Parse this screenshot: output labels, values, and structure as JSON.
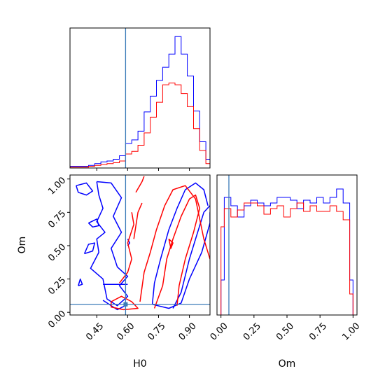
{
  "chart_data": {
    "type": "corner",
    "parameters": [
      "H0",
      "Om"
    ],
    "truth": {
      "H0": 0.59,
      "Om": 0.06
    },
    "series_colors": {
      "blue": "#0000ff",
      "red": "#ff0000",
      "truth": "#3b7bb8"
    },
    "panels": [
      {
        "id": "H0-marginal",
        "type": "histogram-step",
        "xlim": [
          0.32,
          1.0
        ],
        "x_ticks": [
          0.45,
          0.6,
          0.75,
          0.9
        ],
        "bins": [
          0.32,
          0.35,
          0.38,
          0.41,
          0.44,
          0.47,
          0.5,
          0.53,
          0.56,
          0.59,
          0.62,
          0.65,
          0.68,
          0.71,
          0.74,
          0.77,
          0.8,
          0.83,
          0.86,
          0.89,
          0.92,
          0.95,
          0.98
        ],
        "series": [
          {
            "color": "blue",
            "counts": [
              2,
              2,
              2,
              3,
              5,
              7,
              8,
              10,
              14,
              28,
              32,
              42,
              64,
              82,
              100,
              115,
              130,
              150,
              130,
              105,
              65,
              30,
              10
            ]
          },
          {
            "color": "red",
            "counts": [
              1,
              1,
              1,
              2,
              3,
              4,
              5,
              6,
              8,
              16,
              19,
              26,
              40,
              58,
              75,
              95,
              97,
              95,
              85,
              70,
              45,
              20,
              5
            ]
          }
        ]
      },
      {
        "id": "Om-vs-H0",
        "type": "contour",
        "xlabel": "H0",
        "ylabel": "Om",
        "xlim": [
          0.32,
          1.0
        ],
        "ylim": [
          -0.02,
          1.03
        ],
        "x_ticks": [
          0.45,
          0.6,
          0.75,
          0.9
        ],
        "x_tick_labels": [
          "0.45",
          "0.60",
          "0.75",
          "0.90"
        ],
        "y_ticks": [
          0.0,
          0.25,
          0.5,
          0.75,
          1.0
        ],
        "y_tick_labels": [
          "0.00",
          "0.25",
          "0.50",
          "0.75",
          "1.00"
        ],
        "contours": [
          {
            "color": "blue",
            "points": [
              [
                0.35,
                0.95
              ],
              [
                0.4,
                0.97
              ],
              [
                0.43,
                0.91
              ],
              [
                0.4,
                0.88
              ],
              [
                0.36,
                0.9
              ],
              [
                0.35,
                0.95
              ]
            ]
          },
          {
            "color": "blue",
            "points": [
              [
                0.45,
                0.98
              ],
              [
                0.52,
                0.97
              ],
              [
                0.57,
                0.86
              ],
              [
                0.53,
                0.72
              ],
              [
                0.57,
                0.6
              ],
              [
                0.52,
                0.48
              ],
              [
                0.55,
                0.34
              ],
              [
                0.6,
                0.27
              ],
              [
                0.56,
                0.2
              ],
              [
                0.6,
                0.12
              ],
              [
                0.55,
                0.05
              ],
              [
                0.5,
                0.1
              ],
              [
                0.48,
                0.25
              ],
              [
                0.42,
                0.33
              ],
              [
                0.46,
                0.45
              ],
              [
                0.45,
                0.55
              ],
              [
                0.49,
                0.6
              ],
              [
                0.45,
                0.68
              ],
              [
                0.48,
                0.78
              ],
              [
                0.46,
                0.88
              ],
              [
                0.45,
                0.98
              ]
            ]
          },
          {
            "color": "blue",
            "points": [
              [
                0.41,
                0.67
              ],
              [
                0.45,
                0.7
              ],
              [
                0.46,
                0.65
              ],
              [
                0.43,
                0.64
              ],
              [
                0.41,
                0.67
              ]
            ]
          },
          {
            "color": "blue",
            "points": [
              [
                0.39,
                0.44
              ],
              [
                0.43,
                0.46
              ],
              [
                0.44,
                0.52
              ],
              [
                0.41,
                0.51
              ],
              [
                0.39,
                0.44
              ]
            ]
          },
          {
            "color": "blue",
            "points": [
              [
                0.36,
                0.2
              ],
              [
                0.37,
                0.25
              ],
              [
                0.38,
                0.21
              ],
              [
                0.36,
                0.2
              ]
            ]
          },
          {
            "color": "blue",
            "points": [
              [
                0.48,
                0.21
              ],
              [
                0.6,
                0.21
              ]
            ]
          },
          {
            "color": "blue",
            "points": [
              [
                0.48,
                0.09
              ],
              [
                0.55,
                0.02
              ],
              [
                0.6,
                0.06
              ]
            ]
          },
          {
            "color": "blue",
            "points": [
              [
                0.6,
                0.55
              ],
              [
                0.61,
                0.52
              ],
              [
                0.6,
                0.5
              ]
            ]
          },
          {
            "color": "blue",
            "points": [
              [
                0.72,
                0.06
              ],
              [
                0.8,
                0.03
              ],
              [
                0.86,
                0.07
              ],
              [
                0.9,
                0.25
              ],
              [
                0.96,
                0.45
              ],
              [
                1.0,
                0.67
              ],
              [
                1.0,
                0.75
              ]
            ]
          },
          {
            "color": "blue",
            "points": [
              [
                0.72,
                0.06
              ],
              [
                0.73,
                0.22
              ],
              [
                0.76,
                0.4
              ],
              [
                0.8,
                0.62
              ],
              [
                0.84,
                0.78
              ],
              [
                0.88,
                0.92
              ],
              [
                0.93,
                0.97
              ],
              [
                0.97,
                0.92
              ],
              [
                0.99,
                0.8
              ]
            ]
          },
          {
            "color": "blue",
            "points": [
              [
                0.82,
                0.03
              ],
              [
                0.86,
                0.15
              ],
              [
                0.9,
                0.4
              ],
              [
                0.93,
                0.55
              ],
              [
                0.97,
                0.75
              ],
              [
                1.0,
                0.8
              ]
            ]
          },
          {
            "color": "red",
            "points": [
              [
                0.66,
                0.08
              ],
              [
                0.68,
                0.3
              ],
              [
                0.71,
                0.45
              ],
              [
                0.74,
                0.62
              ],
              [
                0.78,
                0.8
              ],
              [
                0.82,
                0.92
              ],
              [
                0.88,
                0.95
              ],
              [
                0.93,
                0.85
              ],
              [
                0.95,
                0.7
              ],
              [
                0.97,
                0.55
              ],
              [
                1.0,
                0.4
              ]
            ]
          },
          {
            "color": "red",
            "points": [
              [
                0.73,
                0.03
              ],
              [
                0.77,
                0.2
              ],
              [
                0.79,
                0.4
              ],
              [
                0.82,
                0.55
              ],
              [
                0.86,
                0.72
              ],
              [
                0.9,
                0.85
              ],
              [
                0.93,
                0.88
              ],
              [
                0.95,
                0.78
              ],
              [
                0.92,
                0.6
              ],
              [
                0.88,
                0.4
              ],
              [
                0.85,
                0.2
              ],
              [
                0.84,
                0.05
              ]
            ]
          },
          {
            "color": "red",
            "points": [
              [
                0.8,
                0.55
              ],
              [
                0.82,
                0.52
              ],
              [
                0.81,
                0.48
              ],
              [
                0.8,
                0.55
              ]
            ]
          },
          {
            "color": "red",
            "points": [
              [
                0.52,
                0.08
              ],
              [
                0.57,
                0.12
              ],
              [
                0.62,
                0.08
              ],
              [
                0.65,
                0.03
              ],
              [
                0.58,
                0.02
              ],
              [
                0.52,
                0.04
              ],
              [
                0.52,
                0.08
              ]
            ]
          },
          {
            "color": "red",
            "points": [
              [
                0.56,
                0.22
              ],
              [
                0.6,
                0.3
              ],
              [
                0.62,
                0.4
              ],
              [
                0.6,
                0.52
              ],
              [
                0.63,
                0.66
              ],
              [
                0.62,
                0.75
              ]
            ]
          },
          {
            "color": "red",
            "points": [
              [
                0.64,
                0.9
              ],
              [
                0.67,
                0.98
              ],
              [
                0.68,
                1.02
              ]
            ]
          },
          {
            "color": "red",
            "points": [
              [
                0.63,
                0.55
              ],
              [
                0.65,
                0.75
              ],
              [
                0.67,
                0.82
              ]
            ]
          }
        ]
      },
      {
        "id": "Om-marginal",
        "type": "histogram-step",
        "xlabel": "Om",
        "xlim": [
          -0.03,
          1.03
        ],
        "x_ticks": [
          0.0,
          0.25,
          0.5,
          0.75,
          1.0
        ],
        "x_tick_labels": [
          "0.00",
          "0.25",
          "0.50",
          "0.75",
          "1.00"
        ],
        "bins": [
          0.0,
          0.025,
          0.075,
          0.125,
          0.175,
          0.225,
          0.275,
          0.325,
          0.375,
          0.425,
          0.475,
          0.525,
          0.575,
          0.625,
          0.675,
          0.725,
          0.775,
          0.825,
          0.875,
          0.925,
          0.975,
          1.0
        ],
        "series": [
          {
            "color": "blue",
            "counts": [
              25,
              84,
              78,
              70,
              78,
              82,
              80,
              78,
              80,
              84,
              84,
              82,
              76,
              82,
              80,
              84,
              80,
              84,
              90,
              80,
              25
            ]
          },
          {
            "color": "red",
            "counts": [
              63,
              76,
              70,
              75,
              80,
              80,
              78,
              72,
              76,
              78,
              70,
              76,
              80,
              74,
              78,
              74,
              74,
              78,
              74,
              68,
              15
            ]
          }
        ]
      }
    ]
  }
}
